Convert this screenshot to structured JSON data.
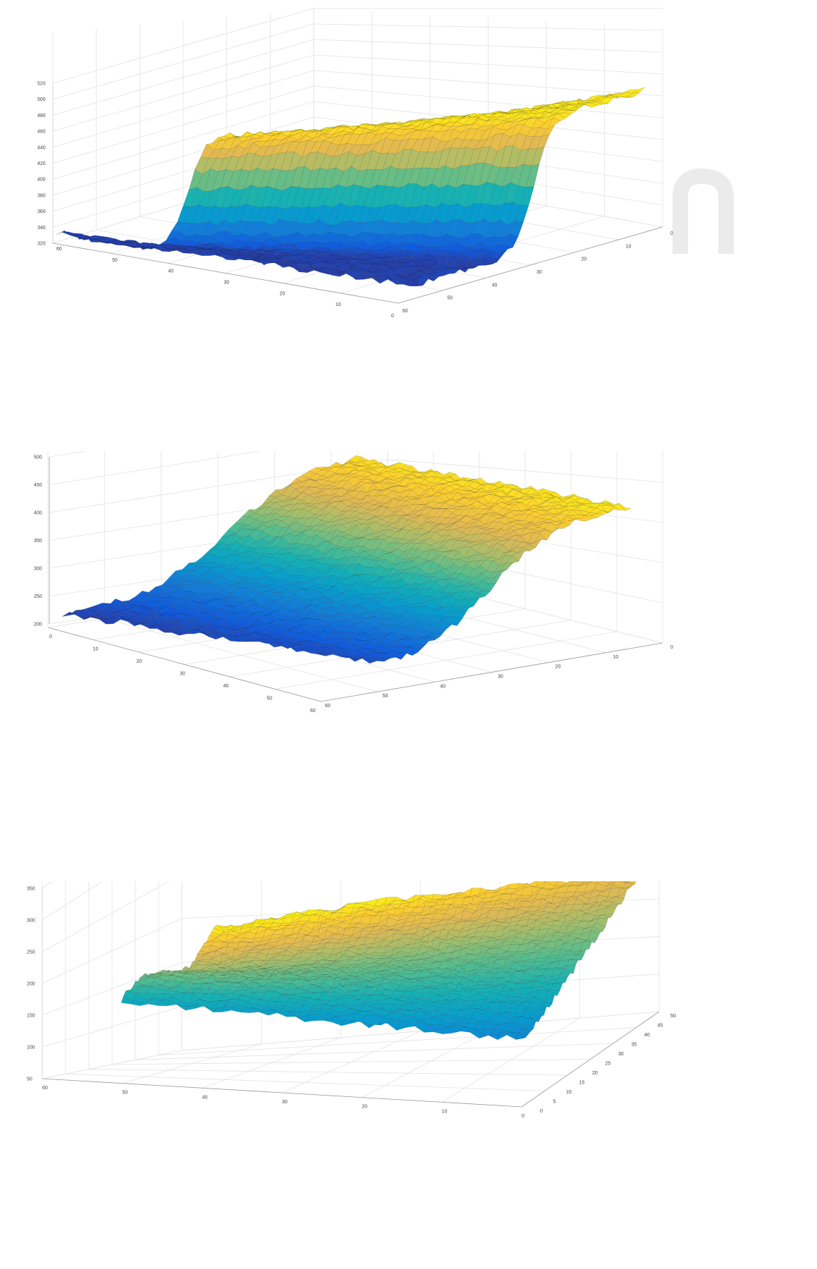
{
  "chart_data": [
    {
      "type": "surface",
      "colormap": "parula",
      "grid": true,
      "z_ticks": [
        "320",
        "340",
        "360",
        "380",
        "400",
        "420",
        "440",
        "460",
        "480",
        "500",
        "520"
      ],
      "x_ticks": [
        "60",
        "50",
        "40",
        "30",
        "20",
        "10",
        "0"
      ],
      "y_ticks": [
        "60",
        "50",
        "40",
        "30",
        "20",
        "10",
        "0"
      ],
      "zlim": [
        320,
        520
      ],
      "xlim": [
        0,
        60
      ],
      "ylim": [
        0,
        60
      ],
      "surface_profile": {
        "kind": "sharp_step",
        "low": 330,
        "high": 510,
        "description_free": true
      }
    },
    {
      "type": "surface",
      "colormap": "parula",
      "grid": true,
      "z_ticks": [
        "200",
        "250",
        "300",
        "350",
        "400",
        "450",
        "500"
      ],
      "x_ticks": [
        "0",
        "10",
        "20",
        "30",
        "40",
        "50",
        "60"
      ],
      "y_ticks": [
        "60",
        "50",
        "40",
        "30",
        "20",
        "10",
        "0"
      ],
      "zlim": [
        200,
        500
      ],
      "xlim": [
        0,
        60
      ],
      "ylim": [
        0,
        60
      ],
      "surface_profile": {
        "kind": "smooth_step",
        "low": 210,
        "high": 490
      }
    },
    {
      "type": "surface",
      "colormap": "parula",
      "grid": true,
      "z_ticks": [
        "50",
        "100",
        "150",
        "200",
        "250",
        "300",
        "350"
      ],
      "x_ticks": [
        "60",
        "50",
        "40",
        "30",
        "20",
        "10",
        "0"
      ],
      "y_ticks": [
        "0",
        "5",
        "10",
        "15",
        "20",
        "25",
        "30",
        "35",
        "40",
        "45",
        "50"
      ],
      "zlim": [
        50,
        350
      ],
      "xlim": [
        0,
        60
      ],
      "ylim": [
        0,
        50
      ],
      "surface_profile": {
        "kind": "ramp",
        "low": 90,
        "high": 340
      }
    }
  ]
}
